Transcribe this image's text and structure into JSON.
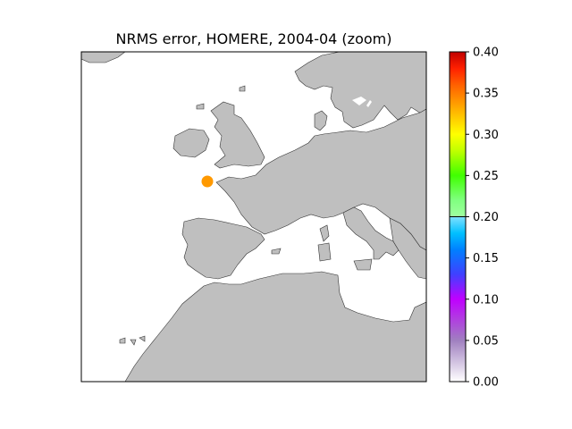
{
  "title": "NRMS error, HOMERE, 2004-04 (zoom)",
  "colors": {
    "land": "#bfbfbf",
    "sea": "#ffffff",
    "coast": "#333333",
    "frame": "#000000"
  },
  "markers": [
    {
      "name": "station",
      "region": "off Brittany",
      "value": 0.33,
      "color": "#ff9900"
    }
  ],
  "colorbar": {
    "min": 0.0,
    "max": 0.4,
    "ticks": [
      "0.00",
      "0.05",
      "0.10",
      "0.15",
      "0.20",
      "0.25",
      "0.30",
      "0.35",
      "0.40"
    ],
    "separator_value": 0.2,
    "stops": [
      {
        "v": 0.0,
        "color": "#ffffff"
      },
      {
        "v": 0.05,
        "color": "#a080c0"
      },
      {
        "v": 0.1,
        "color": "#c000ff"
      },
      {
        "v": 0.13,
        "color": "#4040ff"
      },
      {
        "v": 0.16,
        "color": "#0080ff"
      },
      {
        "v": 0.18,
        "color": "#00c0ff"
      },
      {
        "v": 0.2,
        "color": "#80e0ff"
      },
      {
        "v": 0.2,
        "color": "#a0ffa0"
      },
      {
        "v": 0.22,
        "color": "#80ff80"
      },
      {
        "v": 0.25,
        "color": "#40ff00"
      },
      {
        "v": 0.28,
        "color": "#c0ff00"
      },
      {
        "v": 0.3,
        "color": "#ffff00"
      },
      {
        "v": 0.33,
        "color": "#ffb000"
      },
      {
        "v": 0.36,
        "color": "#ff6000"
      },
      {
        "v": 0.38,
        "color": "#ff2000"
      },
      {
        "v": 0.4,
        "color": "#c00000"
      }
    ]
  }
}
